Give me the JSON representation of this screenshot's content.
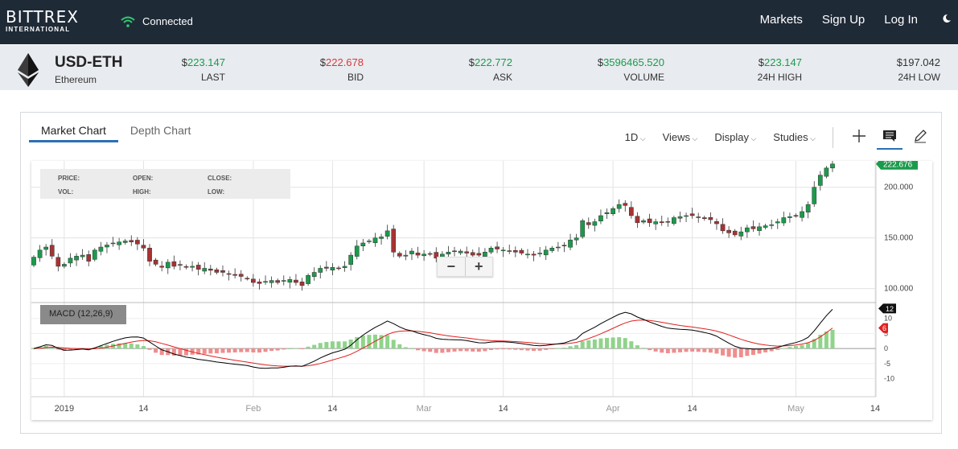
{
  "header": {
    "logo_main": "BITTREX",
    "logo_sub": "INTERNATIONAL",
    "status": "Connected",
    "nav": [
      "Markets",
      "Sign Up",
      "Log In"
    ],
    "icons": [
      "wifi-icon",
      "moon-icon"
    ]
  },
  "ticker": {
    "pair": "USD-ETH",
    "name": "Ethereum",
    "currency_symbol": "$",
    "stats": [
      {
        "value": "223.147",
        "label": "LAST",
        "color": "#1a9b4b"
      },
      {
        "value": "222.678",
        "label": "BID",
        "color": "#d9393b"
      },
      {
        "value": "222.772",
        "label": "ASK",
        "color": "#1a9b4b"
      },
      {
        "value": "3596465.520",
        "label": "VOLUME",
        "color": "#1a9b4b"
      },
      {
        "value": "223.147",
        "label": "24H HIGH",
        "color": "#1a9b4b"
      },
      {
        "value": "197.042",
        "label": "24H LOW",
        "color": "#333333"
      }
    ]
  },
  "chart_panel": {
    "tabs": [
      "Market Chart",
      "Depth Chart"
    ],
    "active_tab": "Market Chart",
    "toolbar": {
      "interval": "1D",
      "views": "Views",
      "display": "Display",
      "studies": "Studies"
    },
    "infobox": {
      "price": "PRICE:",
      "open": "OPEN:",
      "close": "CLOSE:",
      "vol": "VOL:",
      "high": "HIGH:",
      "low": "LOW:"
    },
    "zoom_out": "−",
    "zoom_in": "+",
    "macd_label": "MACD (12,26,9)"
  },
  "chart_data": [
    {
      "type": "candlestick",
      "price_axis_ticks": [
        "100.000",
        "150.000",
        "200.000"
      ],
      "price_ticks_values": [
        100,
        150,
        200
      ],
      "y_range": [
        87,
        226
      ],
      "current_price_label": "222.676",
      "x_tick_labels": [
        "2019",
        "14",
        "Feb",
        "14",
        "Mar",
        "14",
        "Apr",
        "14",
        "May",
        "14"
      ],
      "x_tick_days": [
        5,
        18,
        36,
        49,
        64,
        77,
        95,
        108,
        125,
        138
      ],
      "up_color": "#1a9b4b",
      "down_color": "#a83232",
      "closes": [
        131,
        138,
        141,
        132,
        122,
        124,
        130,
        132,
        133,
        127,
        138,
        141,
        143,
        145,
        146,
        147,
        146,
        144,
        140,
        127,
        124,
        121,
        126,
        122,
        123,
        121,
        122,
        119,
        120,
        118,
        116,
        116,
        114,
        113,
        112,
        110,
        106,
        105,
        107,
        108,
        106,
        108,
        109,
        106,
        103,
        113,
        116,
        120,
        120,
        121,
        120,
        122,
        133,
        142,
        145,
        147,
        150,
        151,
        157,
        136,
        132,
        133,
        137,
        133,
        134,
        134,
        130,
        134,
        136,
        137,
        137,
        135,
        133,
        133,
        136,
        140,
        139,
        138,
        137,
        136,
        135,
        134,
        133,
        135,
        138,
        140,
        141,
        142,
        148,
        150,
        167,
        163,
        166,
        172,
        175,
        179,
        183,
        182,
        172,
        165,
        167,
        165,
        166,
        165,
        166,
        170,
        171,
        172,
        172,
        170,
        169,
        168,
        164,
        157,
        155,
        153,
        156,
        160,
        159,
        161,
        162,
        163,
        166,
        170,
        171,
        172,
        176,
        183,
        200,
        212,
        219,
        223
      ]
    },
    {
      "type": "macd",
      "params": "12,26,9",
      "y_ticks": [
        10,
        5,
        0,
        -5,
        -10
      ],
      "y_range": [
        -16,
        15
      ],
      "macd_line_label": "12",
      "signal_line_label": "6",
      "hist_up_color": "#8fd48a",
      "hist_down_color": "#f08d8d",
      "macd_line_color": "#000000",
      "signal_line_color": "#e0201f"
    }
  ]
}
